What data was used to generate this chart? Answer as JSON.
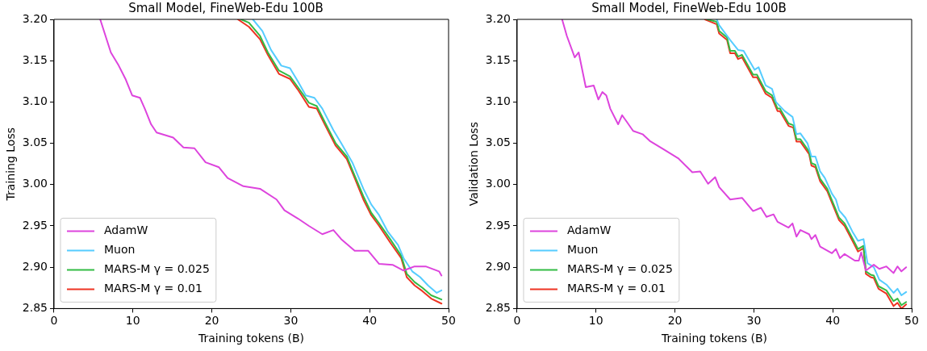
{
  "chart_data": [
    {
      "type": "line",
      "title": "Small Model, FineWeb-Edu 100B",
      "xlabel": "Training tokens (B)",
      "ylabel": "Training Loss",
      "xlim": [
        0,
        50
      ],
      "xticks": [
        0,
        10,
        20,
        30,
        40,
        50
      ],
      "ylim": [
        2.85,
        3.2
      ],
      "yticks": [
        2.85,
        {
          "value": 2.9,
          "label": "2.90"
        },
        2.95,
        {
          "value": 3.0,
          "label": "3.00"
        },
        3.05,
        {
          "value": 3.1,
          "label": "3.10"
        },
        3.15,
        {
          "value": 3.2,
          "label": "3.20"
        }
      ],
      "grid": false,
      "legend": "bottom left",
      "series": [
        {
          "name": "AdamW",
          "color": "#dd44dd",
          "x": [
            5.85,
            7.2,
            8.2,
            9.05,
            9.9,
            10.9,
            11.5,
            12.3,
            13,
            15.1,
            16.4,
            17.8,
            19.2,
            20.9,
            22,
            24,
            26.1,
            28.2,
            29.2,
            30.9,
            32.3,
            34,
            35.4,
            36.4,
            38.1,
            39.8,
            41.2,
            42.9,
            44.3,
            45.7,
            47.1,
            48.8,
            49.1
          ],
          "values": [
            3.2,
            3.16,
            3.144,
            3.128,
            3.108,
            3.105,
            3.092,
            3.073,
            3.063,
            3.057,
            3.045,
            3.044,
            3.027,
            3.021,
            3.008,
            2.998,
            2.995,
            2.982,
            2.969,
            2.959,
            2.95,
            2.94,
            2.945,
            2.934,
            2.92,
            2.92,
            2.904,
            2.903,
            2.896,
            2.901,
            2.901,
            2.895,
            2.89
          ]
        },
        {
          "name": "Muon",
          "color": "#55ccff",
          "x": [
            25.2,
            26.4,
            27.5,
            28.8,
            29.9,
            30.9,
            31.9,
            33,
            34,
            35.4,
            36.4,
            37.8,
            39.2,
            40.2,
            41.2,
            42.3,
            43.6,
            44.3,
            45.4,
            46.4,
            47.4,
            48.5,
            49.1
          ],
          "values": [
            3.2,
            3.186,
            3.163,
            3.144,
            3.141,
            3.125,
            3.108,
            3.105,
            3.092,
            3.066,
            3.05,
            3.027,
            2.995,
            2.976,
            2.963,
            2.943,
            2.927,
            2.911,
            2.895,
            2.888,
            2.878,
            2.869,
            2.872
          ]
        },
        {
          "name": "MARS-M γ = 0.025",
          "color": "#33bb44",
          "x": [
            23.7,
            24.7,
            26.1,
            27.1,
            28.5,
            29.9,
            30.9,
            32.3,
            33.3,
            34.3,
            35.7,
            37.1,
            38.1,
            39.2,
            40.2,
            41.2,
            42.6,
            44,
            44.7,
            45.7,
            46.7,
            47.8,
            49.1
          ],
          "values": [
            3.2,
            3.196,
            3.18,
            3.16,
            3.138,
            3.131,
            3.118,
            3.099,
            3.095,
            3.076,
            3.05,
            3.034,
            3.011,
            2.986,
            2.966,
            2.953,
            2.934,
            2.914,
            2.892,
            2.882,
            2.875,
            2.866,
            2.861
          ]
        },
        {
          "name": "MARS-M γ = 0.01",
          "color": "#ee3322",
          "x": [
            23.3,
            24.7,
            26.1,
            27.1,
            28.5,
            29.9,
            30.9,
            32.3,
            33.3,
            34.3,
            35.7,
            37.1,
            38.1,
            39.2,
            40.2,
            41.2,
            42.6,
            44,
            44.7,
            45.7,
            46.7,
            47.8,
            49.1
          ],
          "values": [
            3.2,
            3.191,
            3.176,
            3.157,
            3.134,
            3.128,
            3.115,
            3.094,
            3.092,
            3.073,
            3.047,
            3.031,
            3.008,
            2.982,
            2.963,
            2.95,
            2.93,
            2.911,
            2.888,
            2.878,
            2.871,
            2.862,
            2.856
          ]
        }
      ]
    },
    {
      "type": "line",
      "title": "Small Model, FineWeb-Edu 100B",
      "xlabel": "Training tokens (B)",
      "ylabel": "Validation Loss",
      "xlim": [
        0,
        50
      ],
      "xticks": [
        0,
        10,
        20,
        30,
        40,
        50
      ],
      "ylim": [
        2.85,
        3.2
      ],
      "yticks": [
        2.85,
        {
          "value": 2.9,
          "label": "2.90"
        },
        2.95,
        {
          "value": 3.0,
          "label": "3.00"
        },
        3.05,
        {
          "value": 3.1,
          "label": "3.10"
        },
        3.15,
        {
          "value": 3.2,
          "label": "3.20"
        }
      ],
      "grid": false,
      "legend": "bottom left",
      "series": [
        {
          "name": "AdamW",
          "color": "#dd44dd",
          "x": [
            5.7,
            6.3,
            7.3,
            7.8,
            8.7,
            9.7,
            10.3,
            10.8,
            11.3,
            11.8,
            12.8,
            13.3,
            13.9,
            14.7,
            15.9,
            16.8,
            18.7,
            20.4,
            22.2,
            23.2,
            24.2,
            25.1,
            25.6,
            27,
            28.5,
            29.9,
            30.9,
            31.6,
            32.5,
            33,
            34.4,
            34.9,
            35.4,
            35.9,
            37,
            37.3,
            37.8,
            38.4,
            39.9,
            40.4,
            40.9,
            41.5,
            42.8,
            43.3,
            43.6,
            44.2,
            45.2,
            45.9,
            46.8,
            47.7,
            48.2,
            48.7,
            49.3
          ],
          "values": [
            3.2,
            3.18,
            3.154,
            3.16,
            3.118,
            3.12,
            3.103,
            3.112,
            3.108,
            3.092,
            3.073,
            3.084,
            3.076,
            3.065,
            3.061,
            3.053,
            3.042,
            3.032,
            3.015,
            3.016,
            3.001,
            3.009,
            2.997,
            2.982,
            2.984,
            2.968,
            2.972,
            2.961,
            2.964,
            2.955,
            2.948,
            2.953,
            2.937,
            2.945,
            2.94,
            2.934,
            2.939,
            2.925,
            2.917,
            2.922,
            2.911,
            2.916,
            2.908,
            2.908,
            2.918,
            2.896,
            2.903,
            2.898,
            2.901,
            2.893,
            2.901,
            2.895,
            2.9
          ]
        },
        {
          "name": "Muon",
          "color": "#55ccff",
          "x": [
            25.3,
            25.6,
            27,
            28,
            28.7,
            30.1,
            30.6,
            31.5,
            32.3,
            32.8,
            33.9,
            34.9,
            35.4,
            35.9,
            36.8,
            37.3,
            37.8,
            38.4,
            39,
            39.9,
            40.4,
            40.8,
            41.6,
            42.5,
            43.2,
            43.9,
            44.4,
            45.2,
            45.9,
            46.8,
            47.7,
            48.2,
            48.7,
            49.3
          ],
          "values": [
            3.2,
            3.193,
            3.175,
            3.163,
            3.162,
            3.139,
            3.142,
            3.12,
            3.116,
            3.1,
            3.089,
            3.082,
            3.061,
            3.062,
            3.05,
            3.034,
            3.034,
            3.016,
            3.008,
            2.989,
            2.982,
            2.969,
            2.96,
            2.943,
            2.932,
            2.934,
            2.905,
            2.9,
            2.885,
            2.879,
            2.869,
            2.874,
            2.866,
            2.87
          ]
        },
        {
          "name": "MARS-M γ = 0.025",
          "color": "#33bb44",
          "x": [
            24.1,
            25.3,
            25.6,
            26.6,
            27,
            27.6,
            28,
            28.5,
            29.9,
            30.4,
            31.5,
            32.3,
            33,
            33.3,
            34.4,
            35,
            35.4,
            35.9,
            37,
            37.3,
            37.8,
            38.4,
            39.3,
            39.9,
            40.8,
            41.5,
            42.5,
            43.2,
            43.9,
            44.2,
            44.8,
            45.2,
            45.8,
            46.8,
            47.7,
            48.2,
            48.7,
            49.3
          ],
          "values": [
            3.2,
            3.197,
            3.186,
            3.178,
            3.162,
            3.162,
            3.155,
            3.157,
            3.133,
            3.133,
            3.113,
            3.108,
            3.092,
            3.092,
            3.074,
            3.072,
            3.055,
            3.055,
            3.04,
            3.026,
            3.024,
            3.007,
            2.995,
            2.981,
            2.96,
            2.953,
            2.935,
            2.922,
            2.926,
            2.895,
            2.891,
            2.89,
            2.877,
            2.872,
            2.859,
            2.862,
            2.854,
            2.858
          ]
        },
        {
          "name": "MARS-M γ = 0.01",
          "color": "#ee3322",
          "x": [
            23.8,
            25.3,
            25.6,
            26.6,
            27,
            27.6,
            28,
            28.5,
            29.9,
            30.4,
            31.5,
            32.3,
            33,
            33.3,
            34.4,
            35,
            35.4,
            35.9,
            37,
            37.3,
            37.8,
            38.4,
            39.3,
            39.9,
            40.8,
            41.5,
            42.5,
            43.2,
            43.9,
            44.2,
            44.8,
            45.2,
            45.8,
            46.8,
            47.7,
            48.2,
            48.7,
            49.3
          ],
          "values": [
            3.2,
            3.194,
            3.183,
            3.175,
            3.159,
            3.159,
            3.152,
            3.154,
            3.13,
            3.13,
            3.11,
            3.105,
            3.089,
            3.089,
            3.071,
            3.069,
            3.052,
            3.052,
            3.037,
            3.023,
            3.021,
            3.004,
            2.992,
            2.978,
            2.957,
            2.95,
            2.932,
            2.919,
            2.923,
            2.892,
            2.888,
            2.887,
            2.874,
            2.868,
            2.853,
            2.857,
            2.85,
            2.855
          ]
        }
      ]
    }
  ]
}
